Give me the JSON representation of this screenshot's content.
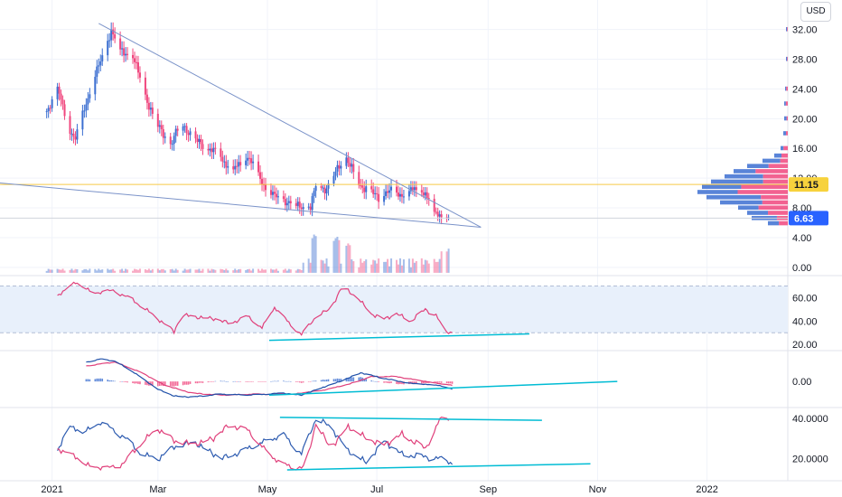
{
  "currency_label": "USD",
  "colors": {
    "up": "#3c6fd1",
    "down": "#f0477e",
    "trendline": "#7b93c9",
    "signal_line": "#00bcd4",
    "price_line": "#f7c948",
    "last_price_badge": "#2962ff",
    "level_badge": "#f7d23d",
    "rsi_line": "#e0407b",
    "rsi_band": "#e8f0fb",
    "macd_line": "#1e4fa8",
    "macd_signal": "#e0407b",
    "dmi_plus": "#e0407b",
    "dmi_minus": "#2d5bb0"
  },
  "chart_data": [
    {
      "type": "candlestick",
      "name": "price",
      "x_axis": {
        "type": "date",
        "ticks": [
          "2021",
          "Mar",
          "May",
          "Jul",
          "Sep",
          "Nov",
          "2022"
        ],
        "tick_dates": [
          "2021-01-01",
          "2021-03-01",
          "2021-05-01",
          "2021-07-01",
          "2021-09-01",
          "2021-11-01",
          "2022-01-01"
        ],
        "range": [
          "2020-12-05",
          "2022-02-15"
        ]
      },
      "y_axis": {
        "position": "right",
        "ticks": [
          "0.00",
          "4.00",
          "8.00",
          "12.00",
          "16.00",
          "20.00",
          "24.00",
          "28.00",
          "32.00"
        ],
        "ylim": [
          -0.5,
          34.5
        ]
      },
      "last_price": "6.63",
      "level_price": "11.15",
      "price_anchors": [
        [
          "2020-12-29",
          21.0
        ],
        [
          "2021-01-04",
          24.0
        ],
        [
          "2021-01-10",
          19.0
        ],
        [
          "2021-01-14",
          17.3
        ],
        [
          "2021-01-20",
          22.0
        ],
        [
          "2021-01-24",
          25.5
        ],
        [
          "2021-01-28",
          27.5
        ],
        [
          "2021-02-03",
          32.0
        ],
        [
          "2021-02-08",
          29.0
        ],
        [
          "2021-02-15",
          28.5
        ],
        [
          "2021-02-22",
          23.0
        ],
        [
          "2021-03-01",
          19.0
        ],
        [
          "2021-03-08",
          16.5
        ],
        [
          "2021-03-14",
          19.5
        ],
        [
          "2021-03-22",
          17.0
        ],
        [
          "2021-04-02",
          15.5
        ],
        [
          "2021-04-12",
          13.0
        ],
        [
          "2021-04-20",
          15.0
        ],
        [
          "2021-04-28",
          11.5
        ],
        [
          "2021-05-05",
          9.5
        ],
        [
          "2021-05-15",
          8.5
        ],
        [
          "2021-05-25",
          8.0
        ],
        [
          "2021-05-28",
          11.0
        ],
        [
          "2021-06-03",
          10.5
        ],
        [
          "2021-06-10",
          13.8
        ],
        [
          "2021-06-14",
          14.5
        ],
        [
          "2021-06-22",
          11.0
        ],
        [
          "2021-07-02",
          9.5
        ],
        [
          "2021-07-08",
          10.2
        ],
        [
          "2021-07-15",
          9.8
        ],
        [
          "2021-07-22",
          10.6
        ],
        [
          "2021-07-28",
          9.8
        ],
        [
          "2021-08-02",
          7.5
        ],
        [
          "2021-08-10",
          6.63
        ]
      ],
      "volume_spikes": [
        [
          "2021-05-28",
          0.85
        ],
        [
          "2021-06-08",
          0.8
        ],
        [
          "2021-06-14",
          0.65
        ],
        [
          "2021-08-08",
          0.55
        ]
      ],
      "trendlines": [
        {
          "role": "upper",
          "from": [
            "2021-01-27",
            32.8
          ],
          "to": [
            "2021-08-28",
            5.4
          ]
        },
        {
          "role": "lower",
          "from": [
            "2020-12-01",
            11.4
          ],
          "to": [
            "2021-08-28",
            5.4
          ]
        }
      ],
      "volume_profile_bands": [
        {
          "price": 5.9,
          "strength": 0.22
        },
        {
          "price": 6.6,
          "strength": 0.4
        },
        {
          "price": 7.3,
          "strength": 0.45
        },
        {
          "price": 8.0,
          "strength": 0.55
        },
        {
          "price": 8.7,
          "strength": 0.75
        },
        {
          "price": 9.4,
          "strength": 0.9
        },
        {
          "price": 10.1,
          "strength": 1.0
        },
        {
          "price": 10.8,
          "strength": 0.95
        },
        {
          "price": 11.5,
          "strength": 0.85
        },
        {
          "price": 12.2,
          "strength": 0.7
        },
        {
          "price": 12.9,
          "strength": 0.6
        },
        {
          "price": 13.6,
          "strength": 0.45
        },
        {
          "price": 14.3,
          "strength": 0.28
        },
        {
          "price": 15.0,
          "strength": 0.15
        },
        {
          "price": 16.0,
          "strength": 0.08
        },
        {
          "price": 18.0,
          "strength": 0.05
        },
        {
          "price": 20.0,
          "strength": 0.04
        },
        {
          "price": 22.0,
          "strength": 0.04
        },
        {
          "price": 24.0,
          "strength": 0.03
        },
        {
          "price": 28.0,
          "strength": 0.02
        },
        {
          "price": 32.0,
          "strength": 0.02
        }
      ]
    },
    {
      "type": "line",
      "name": "rsi",
      "y_axis": {
        "ticks": [
          "20.00",
          "40.00",
          "60.00"
        ],
        "ylim": [
          17,
          75
        ],
        "band": [
          30,
          70
        ]
      },
      "anchors": [
        [
          "2021-01-04",
          62
        ],
        [
          "2021-01-14",
          73
        ],
        [
          "2021-01-24",
          64
        ],
        [
          "2021-02-05",
          66
        ],
        [
          "2021-02-15",
          58
        ],
        [
          "2021-03-01",
          42
        ],
        [
          "2021-03-10",
          31
        ],
        [
          "2021-03-14",
          45
        ],
        [
          "2021-04-01",
          42
        ],
        [
          "2021-04-10",
          38
        ],
        [
          "2021-04-20",
          44
        ],
        [
          "2021-04-28",
          34
        ],
        [
          "2021-05-05",
          52
        ],
        [
          "2021-05-12",
          40
        ],
        [
          "2021-05-20",
          28
        ],
        [
          "2021-05-28",
          44
        ],
        [
          "2021-06-05",
          50
        ],
        [
          "2021-06-12",
          70
        ],
        [
          "2021-06-20",
          60
        ],
        [
          "2021-06-28",
          46
        ],
        [
          "2021-07-05",
          42
        ],
        [
          "2021-07-12",
          46
        ],
        [
          "2021-07-20",
          40
        ],
        [
          "2021-07-28",
          50
        ],
        [
          "2021-08-03",
          45
        ],
        [
          "2021-08-08",
          30
        ],
        [
          "2021-08-12",
          31
        ]
      ],
      "trendline": {
        "from": [
          "2021-05-02",
          23.5
        ],
        "to": [
          "2021-09-24",
          29.0
        ]
      }
    },
    {
      "type": "macd",
      "name": "macd",
      "y_axis": {
        "ticks": [
          "0.00"
        ],
        "ylim": [
          -2.4,
          2.8
        ]
      },
      "macd_anchors": [
        [
          "2021-01-20",
          2.0
        ],
        [
          "2021-01-28",
          2.3
        ],
        [
          "2021-02-05",
          2.1
        ],
        [
          "2021-02-15",
          1.0
        ],
        [
          "2021-03-01",
          -0.8
        ],
        [
          "2021-03-10",
          -1.5
        ],
        [
          "2021-03-20",
          -1.6
        ],
        [
          "2021-04-05",
          -1.3
        ],
        [
          "2021-04-20",
          -1.4
        ],
        [
          "2021-05-10",
          -1.2
        ],
        [
          "2021-05-20",
          -1.4
        ],
        [
          "2021-06-01",
          -0.6
        ],
        [
          "2021-06-12",
          0.1
        ],
        [
          "2021-06-22",
          0.9
        ],
        [
          "2021-07-05",
          0.3
        ],
        [
          "2021-07-20",
          -0.2
        ],
        [
          "2021-08-05",
          -0.4
        ],
        [
          "2021-08-12",
          -0.8
        ]
      ],
      "signal_anchors": [
        [
          "2021-01-20",
          1.6
        ],
        [
          "2021-02-05",
          2.0
        ],
        [
          "2021-02-20",
          0.9
        ],
        [
          "2021-03-05",
          -0.4
        ],
        [
          "2021-03-20",
          -1.2
        ],
        [
          "2021-04-05",
          -1.4
        ],
        [
          "2021-04-25",
          -1.3
        ],
        [
          "2021-05-15",
          -1.3
        ],
        [
          "2021-06-01",
          -0.9
        ],
        [
          "2021-06-15",
          -0.3
        ],
        [
          "2021-06-28",
          0.5
        ],
        [
          "2021-07-12",
          0.5
        ],
        [
          "2021-07-28",
          0.0
        ],
        [
          "2021-08-12",
          -0.4
        ]
      ],
      "trendline": {
        "from": [
          "2021-05-02",
          -1.4
        ],
        "to": [
          "2021-11-12",
          0.0
        ]
      }
    },
    {
      "type": "line",
      "name": "dmi",
      "y_axis": {
        "ticks": [
          "20.0000",
          "40.0000"
        ],
        "ylim": [
          10,
          44
        ]
      },
      "plus_anchors": [
        [
          "2021-01-04",
          25
        ],
        [
          "2021-01-12",
          22
        ],
        [
          "2021-01-20",
          17
        ],
        [
          "2021-02-01",
          15
        ],
        [
          "2021-02-10",
          18
        ],
        [
          "2021-02-20",
          28
        ],
        [
          "2021-03-01",
          35
        ],
        [
          "2021-03-10",
          29
        ],
        [
          "2021-03-20",
          27
        ],
        [
          "2021-04-01",
          30
        ],
        [
          "2021-04-10",
          37
        ],
        [
          "2021-04-20",
          34
        ],
        [
          "2021-05-01",
          23
        ],
        [
          "2021-05-10",
          17
        ],
        [
          "2021-05-22",
          15
        ],
        [
          "2021-05-28",
          38
        ],
        [
          "2021-06-05",
          25
        ],
        [
          "2021-06-15",
          36
        ],
        [
          "2021-06-25",
          30
        ],
        [
          "2021-07-05",
          27
        ],
        [
          "2021-07-15",
          32
        ],
        [
          "2021-07-28",
          25
        ],
        [
          "2021-08-05",
          39
        ],
        [
          "2021-08-10",
          40
        ]
      ],
      "minus_anchors": [
        [
          "2021-01-04",
          24
        ],
        [
          "2021-01-10",
          36
        ],
        [
          "2021-01-18",
          33
        ],
        [
          "2021-01-28",
          38
        ],
        [
          "2021-02-10",
          31
        ],
        [
          "2021-02-20",
          22
        ],
        [
          "2021-03-01",
          20
        ],
        [
          "2021-03-10",
          26
        ],
        [
          "2021-03-22",
          28
        ],
        [
          "2021-04-05",
          20
        ],
        [
          "2021-04-15",
          23
        ],
        [
          "2021-04-28",
          28
        ],
        [
          "2021-05-10",
          32
        ],
        [
          "2021-05-20",
          22
        ],
        [
          "2021-05-28",
          40
        ],
        [
          "2021-06-05",
          36
        ],
        [
          "2021-06-15",
          24
        ],
        [
          "2021-06-25",
          18
        ],
        [
          "2021-07-05",
          29
        ],
        [
          "2021-07-15",
          22
        ],
        [
          "2021-07-28",
          21
        ],
        [
          "2021-08-05",
          20
        ],
        [
          "2021-08-12",
          18
        ]
      ],
      "trendline_upper": {
        "from": [
          "2021-05-08",
          40.5
        ],
        "to": [
          "2021-10-01",
          39.0
        ]
      },
      "trendline_lower": {
        "from": [
          "2021-05-12",
          14.5
        ],
        "to": [
          "2021-10-28",
          17.5
        ]
      }
    }
  ]
}
